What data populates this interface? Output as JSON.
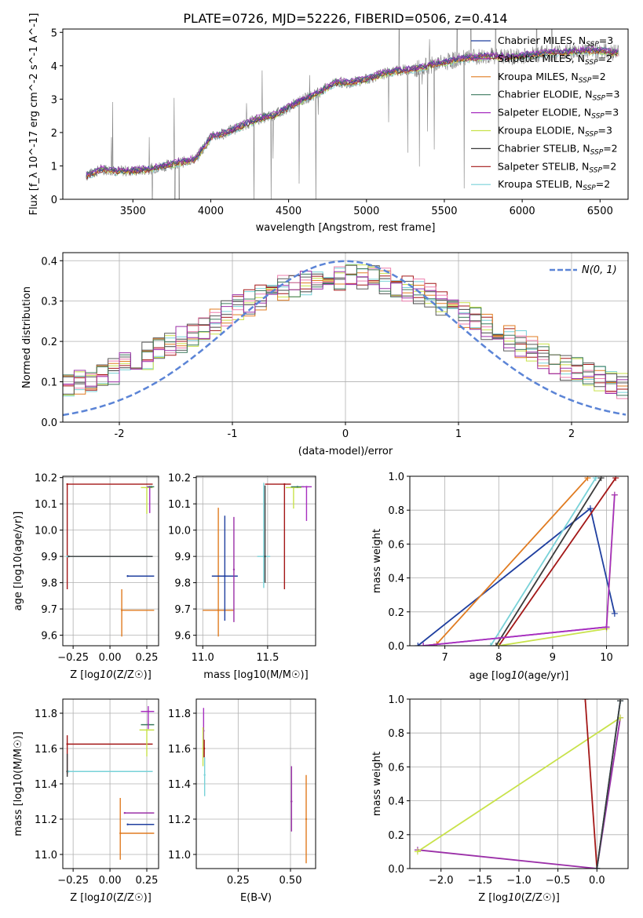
{
  "title": "PLATE=0726, MJD=52226, FIBERID=0506, z=0.414",
  "colors": {
    "chabrier_miles": "#1f3f9f",
    "salpeter_miles": "#9b30a8",
    "kroupa_miles": "#e07b20",
    "chabrier_elodie": "#3c7a5e",
    "salpeter_elodie": "#a72fc0",
    "kroupa_elodie": "#c8e24a",
    "chabrier_stelib": "#3a3a3a",
    "salpeter_stelib": "#a31717",
    "kroupa_stelib": "#78d2d8",
    "gaussian": "#5b84d6",
    "data": "#808080"
  },
  "legend_top": [
    "Chabrier MILES, N$_{SSP}$=3",
    "Salpeter MILES, N$_{SSP}$=2",
    "Kroupa MILES, N$_{SSP}$=2",
    "Chabrier ELODIE, N$_{SSP}$=3",
    "Salpeter ELODIE, N$_{SSP}$=3",
    "Kroupa ELODIE, N$_{SSP}$=3",
    "Chabrier STELIB, N$_{SSP}$=2",
    "Salpeter STELIB, N$_{SSP}$=2",
    "Kroupa STELIB, N$_{SSP}$=2"
  ],
  "legend_top_display": [
    {
      "pre": "Chabrier MILES, N",
      "sub": "SSP",
      "post": "=3"
    },
    {
      "pre": "Salpeter MILES, N",
      "sub": "SSP",
      "post": "=2"
    },
    {
      "pre": "Kroupa MILES, N",
      "sub": "SSP",
      "post": "=2"
    },
    {
      "pre": "Chabrier ELODIE, N",
      "sub": "SSP",
      "post": "=3"
    },
    {
      "pre": "Salpeter ELODIE, N",
      "sub": "SSP",
      "post": "=3"
    },
    {
      "pre": "Kroupa ELODIE, N",
      "sub": "SSP",
      "post": "=3"
    },
    {
      "pre": "Chabrier STELIB, N",
      "sub": "SSP",
      "post": "=2"
    },
    {
      "pre": "Salpeter STELIB, N",
      "sub": "SSP",
      "post": "=2"
    },
    {
      "pre": "Kroupa STELIB, N",
      "sub": "SSP",
      "post": "=2"
    }
  ],
  "legend_mid": "N(0, 1)",
  "chart_data": [
    {
      "type": "line",
      "name": "spectrum",
      "xlabel": "wavelength [Angstrom, rest frame]",
      "ylabel": "Flux [f_λ 10^-17 erg cm^-2 s^-1 A^-1]",
      "xlim": [
        3050,
        6680
      ],
      "ylim": [
        0,
        5.1
      ],
      "xticks": [
        3500,
        4000,
        4500,
        5000,
        5500,
        6000,
        6500
      ],
      "yticks": [
        0,
        1,
        2,
        3,
        4,
        5
      ],
      "continuum": [
        [
          3200,
          0.7
        ],
        [
          3300,
          0.9
        ],
        [
          3400,
          0.85
        ],
        [
          3500,
          0.85
        ],
        [
          3600,
          0.9
        ],
        [
          3700,
          1.0
        ],
        [
          3800,
          1.1
        ],
        [
          3900,
          1.2
        ],
        [
          4000,
          1.85
        ],
        [
          4100,
          2.0
        ],
        [
          4200,
          2.2
        ],
        [
          4300,
          2.4
        ],
        [
          4400,
          2.5
        ],
        [
          4500,
          2.75
        ],
        [
          4600,
          3.0
        ],
        [
          4700,
          3.2
        ],
        [
          4800,
          3.5
        ],
        [
          4900,
          3.5
        ],
        [
          5000,
          3.6
        ],
        [
          5100,
          3.75
        ],
        [
          5200,
          3.85
        ],
        [
          5300,
          3.9
        ],
        [
          5400,
          4.0
        ],
        [
          5500,
          4.1
        ],
        [
          5600,
          4.2
        ],
        [
          5700,
          4.25
        ],
        [
          5800,
          4.3
        ],
        [
          5900,
          4.25
        ],
        [
          6000,
          4.3
        ],
        [
          6100,
          4.35
        ],
        [
          6200,
          4.4
        ],
        [
          6300,
          4.4
        ],
        [
          6400,
          4.45
        ],
        [
          6500,
          4.45
        ],
        [
          6600,
          4.4
        ]
      ]
    },
    {
      "type": "line",
      "name": "residual-histogram",
      "xlabel": "(data-model)/error",
      "ylabel": "Normed distribution",
      "xlim": [
        -2.5,
        2.5
      ],
      "ylim": [
        0,
        0.42
      ],
      "xticks": [
        -2,
        -1,
        0,
        1,
        2
      ],
      "yticks": [
        0.0,
        0.1,
        0.2,
        0.3,
        0.4
      ],
      "gaussian": {
        "mu": 0,
        "sigma": 1
      }
    },
    {
      "type": "scatter",
      "name": "age-vs-Z",
      "xlabel": "Z [log10(Z/Z☉)]",
      "ylabel": "age [log10(age/yr)]",
      "xlim": [
        -0.32,
        0.33
      ],
      "ylim": [
        9.56,
        10.205
      ],
      "xticks": [
        -0.25,
        0.0,
        0.25
      ],
      "xticklabels": [
        "−0.25",
        "0.00",
        "0.25"
      ],
      "yticks": [
        9.6,
        9.7,
        9.8,
        9.9,
        10.0,
        10.1,
        10.2
      ],
      "points": [
        {
          "series": "salpeter_stelib",
          "x": -0.29,
          "xerr_lo": 0,
          "xerr_hi": 0.58,
          "y": 10.175,
          "yerr_lo": 0.4,
          "yerr_hi": 0
        },
        {
          "series": "kroupa_stelib",
          "x": -0.29,
          "xerr_lo": 0,
          "xerr_hi": 0.58,
          "y": 9.9,
          "yerr_lo": 0,
          "yerr_hi": 0
        },
        {
          "series": "chabrier_stelib",
          "x": -0.28,
          "xerr_lo": 0,
          "xerr_hi": 0.57,
          "y": 9.9,
          "yerr_lo": 0,
          "yerr_hi": 0
        },
        {
          "series": "kroupa_miles",
          "x": 0.08,
          "xerr_lo": 0,
          "xerr_hi": 0.22,
          "y": 9.695,
          "yerr_lo": 0.1,
          "yerr_hi": 0.08
        },
        {
          "series": "chabrier_miles",
          "x": 0.12,
          "xerr_lo": 0,
          "xerr_hi": 0.18,
          "y": 9.825,
          "yerr_lo": 0,
          "yerr_hi": 0
        },
        {
          "series": "kroupa_elodie",
          "x": 0.25,
          "xerr_lo": 0.04,
          "xerr_hi": 0.04,
          "y": 10.162,
          "yerr_lo": 0.1,
          "yerr_hi": 0
        },
        {
          "series": "salpeter_elodie",
          "x": 0.27,
          "xerr_lo": 0.02,
          "xerr_hi": 0.02,
          "y": 10.165,
          "yerr_lo": 0.1,
          "yerr_hi": 0
        },
        {
          "series": "chabrier_elodie",
          "x": 0.28,
          "xerr_lo": 0.02,
          "xerr_hi": 0.02,
          "y": 10.165,
          "yerr_lo": 0,
          "yerr_hi": 0
        }
      ]
    },
    {
      "type": "scatter",
      "name": "age-vs-mass",
      "xlabel": "mass [log10(M/M☉)]",
      "ylabel": "",
      "xlim": [
        10.95,
        11.87
      ],
      "ylim": [
        9.56,
        10.205
      ],
      "xticks": [
        11.0,
        11.5
      ],
      "xticklabels": [
        "11.0",
        "11.5"
      ],
      "yticks": [
        9.6,
        9.7,
        9.8,
        9.9,
        10.0,
        10.1,
        10.2
      ],
      "points": [
        {
          "series": "kroupa_miles",
          "x": 11.12,
          "xerr_lo": 0.12,
          "xerr_hi": 0.12,
          "y": 9.695,
          "yerr_lo": 0.1,
          "yerr_hi": 0.39
        },
        {
          "series": "chabrier_miles",
          "x": 11.17,
          "xerr_lo": 0.1,
          "xerr_hi": 0.1,
          "y": 9.825,
          "yerr_lo": 0.17,
          "yerr_hi": 0.23
        },
        {
          "series": "salpeter_miles",
          "x": 11.24,
          "xerr_lo": 0,
          "xerr_hi": 0,
          "y": 9.85,
          "yerr_lo": 0.2,
          "yerr_hi": 0.2
        },
        {
          "series": "kroupa_stelib",
          "x": 11.47,
          "xerr_lo": 0.05,
          "xerr_hi": 0.05,
          "y": 9.9,
          "yerr_lo": 0.12,
          "yerr_hi": 0.28
        },
        {
          "series": "chabrier_stelib",
          "x": 11.48,
          "xerr_lo": 0,
          "xerr_hi": 0,
          "y": 9.9,
          "yerr_lo": 0.1,
          "yerr_hi": 0.27
        },
        {
          "series": "salpeter_stelib",
          "x": 11.63,
          "xerr_lo": 0.15,
          "xerr_hi": 0.05,
          "y": 10.175,
          "yerr_lo": 0.4,
          "yerr_hi": 0
        },
        {
          "series": "kroupa_elodie",
          "x": 11.7,
          "xerr_lo": 0.06,
          "xerr_hi": 0.06,
          "y": 10.162,
          "yerr_lo": 0.08,
          "yerr_hi": 0
        },
        {
          "series": "chabrier_elodie",
          "x": 11.73,
          "xerr_lo": 0.05,
          "xerr_hi": 0.05,
          "y": 10.165,
          "yerr_lo": 0,
          "yerr_hi": 0
        },
        {
          "series": "salpeter_elodie",
          "x": 11.8,
          "xerr_lo": 0.04,
          "xerr_hi": 0.04,
          "y": 10.165,
          "yerr_lo": 0.13,
          "yerr_hi": 0
        }
      ]
    },
    {
      "type": "line",
      "name": "mass-weight-vs-age",
      "xlabel": "age [log10(age/yr)]",
      "ylabel": "mass weight",
      "xlim": [
        6.35,
        10.4
      ],
      "ylim": [
        0,
        1
      ],
      "xticks": [
        7,
        8,
        9,
        10
      ],
      "yticks": [
        0.0,
        0.2,
        0.4,
        0.6,
        0.8,
        1.0
      ],
      "series": [
        {
          "series": "chabrier_miles",
          "points": [
            [
              6.5,
              0.0
            ],
            [
              9.7,
              0.81
            ],
            [
              10.15,
              0.19
            ]
          ]
        },
        {
          "series": "kroupa_miles",
          "points": [
            [
              6.85,
              0.01
            ],
            [
              9.65,
              0.99
            ]
          ]
        },
        {
          "series": "salpeter_miles",
          "points": [
            [
              6.6,
              0.0
            ],
            [
              10.0,
              0.11
            ]
          ]
        },
        {
          "series": "kroupa_stelib",
          "points": [
            [
              7.85,
              0.0
            ],
            [
              9.8,
              0.99
            ]
          ]
        },
        {
          "series": "chabrier_stelib",
          "points": [
            [
              7.95,
              0.0
            ],
            [
              9.9,
              0.99
            ]
          ]
        },
        {
          "series": "salpeter_stelib",
          "points": [
            [
              8.0,
              0.0
            ],
            [
              10.17,
              0.99
            ]
          ]
        },
        {
          "series": "kroupa_elodie",
          "points": [
            [
              8.0,
              0.0
            ],
            [
              10.0,
              0.1
            ],
            [
              10.15,
              0.89
            ]
          ]
        },
        {
          "series": "salpeter_elodie",
          "points": [
            [
              6.6,
              0.0
            ],
            [
              10.0,
              0.11
            ],
            [
              10.15,
              0.89
            ]
          ]
        }
      ]
    },
    {
      "type": "scatter",
      "name": "mass-vs-Z",
      "xlabel": "Z [log10(Z/Z☉)]",
      "ylabel": "mass [log10(M/M☉)]",
      "xlim": [
        -0.32,
        0.33
      ],
      "ylim": [
        10.92,
        11.88
      ],
      "xticks": [
        -0.25,
        0.0,
        0.25
      ],
      "xticklabels": [
        "−0.25",
        "0.00",
        "0.25"
      ],
      "yticks": [
        11.0,
        11.2,
        11.4,
        11.6,
        11.8
      ],
      "points": [
        {
          "series": "salpeter_stelib",
          "x": -0.29,
          "xerr_lo": 0,
          "xerr_hi": 0.58,
          "y": 11.625,
          "yerr_lo": 0.17,
          "yerr_hi": 0.05
        },
        {
          "series": "chabrier_stelib",
          "x": -0.29,
          "xerr_lo": 0,
          "xerr_hi": 0.58,
          "y": 11.47,
          "yerr_lo": 0.03,
          "yerr_hi": 0.1
        },
        {
          "series": "kroupa_stelib",
          "x": -0.28,
          "xerr_lo": 0,
          "xerr_hi": 0.57,
          "y": 11.47,
          "yerr_lo": 0,
          "yerr_hi": 0
        },
        {
          "series": "salpeter_miles",
          "x": 0.1,
          "xerr_lo": 0,
          "xerr_hi": 0.2,
          "y": 11.235,
          "yerr_lo": 0,
          "yerr_hi": 0
        },
        {
          "series": "chabrier_miles",
          "x": 0.12,
          "xerr_lo": 0,
          "xerr_hi": 0.18,
          "y": 11.17,
          "yerr_lo": 0,
          "yerr_hi": 0
        },
        {
          "series": "kroupa_miles",
          "x": 0.07,
          "xerr_lo": 0,
          "xerr_hi": 0.23,
          "y": 11.12,
          "yerr_lo": 0.15,
          "yerr_hi": 0.2
        },
        {
          "series": "kroupa_elodie",
          "x": 0.25,
          "xerr_lo": 0.05,
          "xerr_hi": 0.05,
          "y": 11.705,
          "yerr_lo": 0.15,
          "yerr_hi": 0
        },
        {
          "series": "chabrier_elodie",
          "x": 0.26,
          "xerr_lo": 0.05,
          "xerr_hi": 0.04,
          "y": 11.735,
          "yerr_lo": 0,
          "yerr_hi": 0
        },
        {
          "series": "salpeter_elodie",
          "x": 0.26,
          "xerr_lo": 0.05,
          "xerr_hi": 0.04,
          "y": 11.81,
          "yerr_lo": 0.1,
          "yerr_hi": 0.03
        }
      ]
    },
    {
      "type": "scatter",
      "name": "mass-vs-EBV",
      "xlabel": "E(B-V)",
      "ylabel": "",
      "xlim": [
        0.05,
        0.62
      ],
      "ylim": [
        10.92,
        11.88
      ],
      "xticks": [
        0.25,
        0.5
      ],
      "xticklabels": [
        "0.25",
        "0.50"
      ],
      "yticks": [
        11.0,
        11.2,
        11.4,
        11.6,
        11.8
      ],
      "points": [
        {
          "series": "salpeter_elodie",
          "x": 0.085,
          "xerr_lo": 0,
          "xerr_hi": 0,
          "y": 11.7,
          "yerr_lo": 0.15,
          "yerr_hi": 0.13
        },
        {
          "series": "kroupa_elodie",
          "x": 0.082,
          "xerr_lo": 0,
          "xerr_hi": 0,
          "y": 11.6,
          "yerr_lo": 0.1,
          "yerr_hi": 0.12
        },
        {
          "series": "salpeter_stelib",
          "x": 0.088,
          "xerr_lo": 0,
          "xerr_hi": 0,
          "y": 11.6,
          "yerr_lo": 0.05,
          "yerr_hi": 0.05
        },
        {
          "series": "kroupa_stelib",
          "x": 0.09,
          "xerr_lo": 0,
          "xerr_hi": 0,
          "y": 11.45,
          "yerr_lo": 0.12,
          "yerr_hi": 0.1
        },
        {
          "series": "salpeter_miles",
          "x": 0.505,
          "xerr_lo": 0,
          "xerr_hi": 0,
          "y": 11.3,
          "yerr_lo": 0.17,
          "yerr_hi": 0.2
        },
        {
          "series": "kroupa_miles",
          "x": 0.575,
          "xerr_lo": 0,
          "xerr_hi": 0,
          "y": 11.2,
          "yerr_lo": 0.25,
          "yerr_hi": 0.25
        }
      ]
    },
    {
      "type": "line",
      "name": "mass-weight-vs-Z",
      "xlabel": "Z [log10(Z/Z☉)]",
      "ylabel": "mass weight",
      "xlim": [
        -2.4,
        0.4
      ],
      "ylim": [
        0,
        1
      ],
      "xticks": [
        -2.0,
        -1.5,
        -1.0,
        -0.5,
        0.0
      ],
      "xticklabels": [
        "−2.0",
        "−1.5",
        "−1.0",
        "−0.5",
        "0.0"
      ],
      "yticks": [
        0.0,
        0.2,
        0.4,
        0.6,
        0.8,
        1.0
      ],
      "series": [
        {
          "series": "salpeter_miles",
          "points": [
            [
              -2.3,
              0.11
            ],
            [
              0.0,
              0.0
            ],
            [
              0.3,
              0.89
            ]
          ]
        },
        {
          "series": "kroupa_elodie",
          "points": [
            [
              -2.3,
              0.1
            ],
            [
              0.3,
              0.89
            ]
          ]
        },
        {
          "series": "salpeter_stelib",
          "points": [
            [
              -0.15,
              1.0
            ],
            [
              0.0,
              0.0
            ]
          ]
        },
        {
          "series": "chabrier_miles",
          "points": [
            [
              0.0,
              0.0
            ],
            [
              0.3,
              0.99
            ]
          ]
        },
        {
          "series": "kroupa_stelib",
          "points": [
            [
              0.0,
              0.0
            ],
            [
              0.3,
              0.99
            ]
          ]
        },
        {
          "series": "chabrier_stelib",
          "points": [
            [
              0.0,
              0.0
            ],
            [
              0.3,
              0.99
            ]
          ]
        }
      ]
    }
  ]
}
